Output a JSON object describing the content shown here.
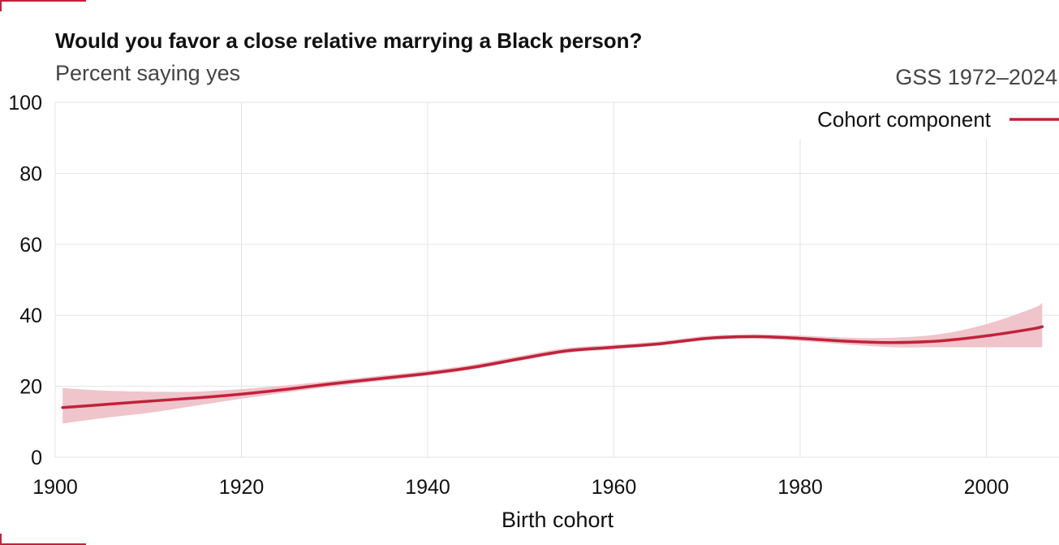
{
  "colors": {
    "accent": "#c0223b",
    "band": "#efc4cb",
    "grid": "#e3e3e3"
  },
  "chart_data": {
    "type": "line",
    "title": "Would you favor a close relative marrying a Black person?",
    "subtitle": "Percent saying yes",
    "source": "GSS 1972–2024",
    "xlabel": "Birth cohort",
    "ylabel": "",
    "xlim": [
      1900,
      2007
    ],
    "ylim": [
      0,
      100
    ],
    "x_ticks": [
      1900,
      1920,
      1940,
      1960,
      1980,
      2000
    ],
    "x_tick_labels": [
      "1900",
      "1920",
      "1940",
      "1960",
      "1980",
      "2000"
    ],
    "y_ticks": [
      0,
      20,
      40,
      60,
      80,
      100
    ],
    "y_tick_labels": [
      "0",
      "20",
      "40",
      "60",
      "80",
      "100"
    ],
    "grid": true,
    "legend": {
      "placement": "top-right"
    },
    "series": [
      {
        "name": "Cohort component",
        "color": "#c0223b",
        "x": [
          1900,
          1905,
          1910,
          1915,
          1920,
          1925,
          1930,
          1935,
          1940,
          1945,
          1950,
          1955,
          1960,
          1965,
          1970,
          1975,
          1980,
          1985,
          1990,
          1995,
          2000,
          2005,
          2006
        ],
        "y": [
          14.0,
          14.8,
          15.8,
          16.7,
          17.8,
          19.2,
          20.8,
          22.2,
          23.6,
          25.4,
          27.8,
          30.0,
          31.0,
          32.0,
          33.5,
          34.0,
          33.5,
          32.7,
          32.3,
          32.8,
          34.2,
          36.2,
          36.8
        ],
        "lower": [
          9.5,
          11.0,
          12.5,
          14.5,
          16.5,
          18.3,
          20.0,
          21.5,
          23.0,
          24.8,
          27.2,
          29.4,
          30.4,
          31.5,
          33.0,
          33.4,
          32.8,
          31.8,
          31.0,
          31.0,
          31.0,
          31.0,
          31.0
        ],
        "upper": [
          19.5,
          18.8,
          18.5,
          18.5,
          19.2,
          20.3,
          21.6,
          23.0,
          24.4,
          26.2,
          28.6,
          30.8,
          31.7,
          32.7,
          34.2,
          34.6,
          34.3,
          33.7,
          33.7,
          34.7,
          37.5,
          42.0,
          43.5
        ]
      }
    ]
  }
}
